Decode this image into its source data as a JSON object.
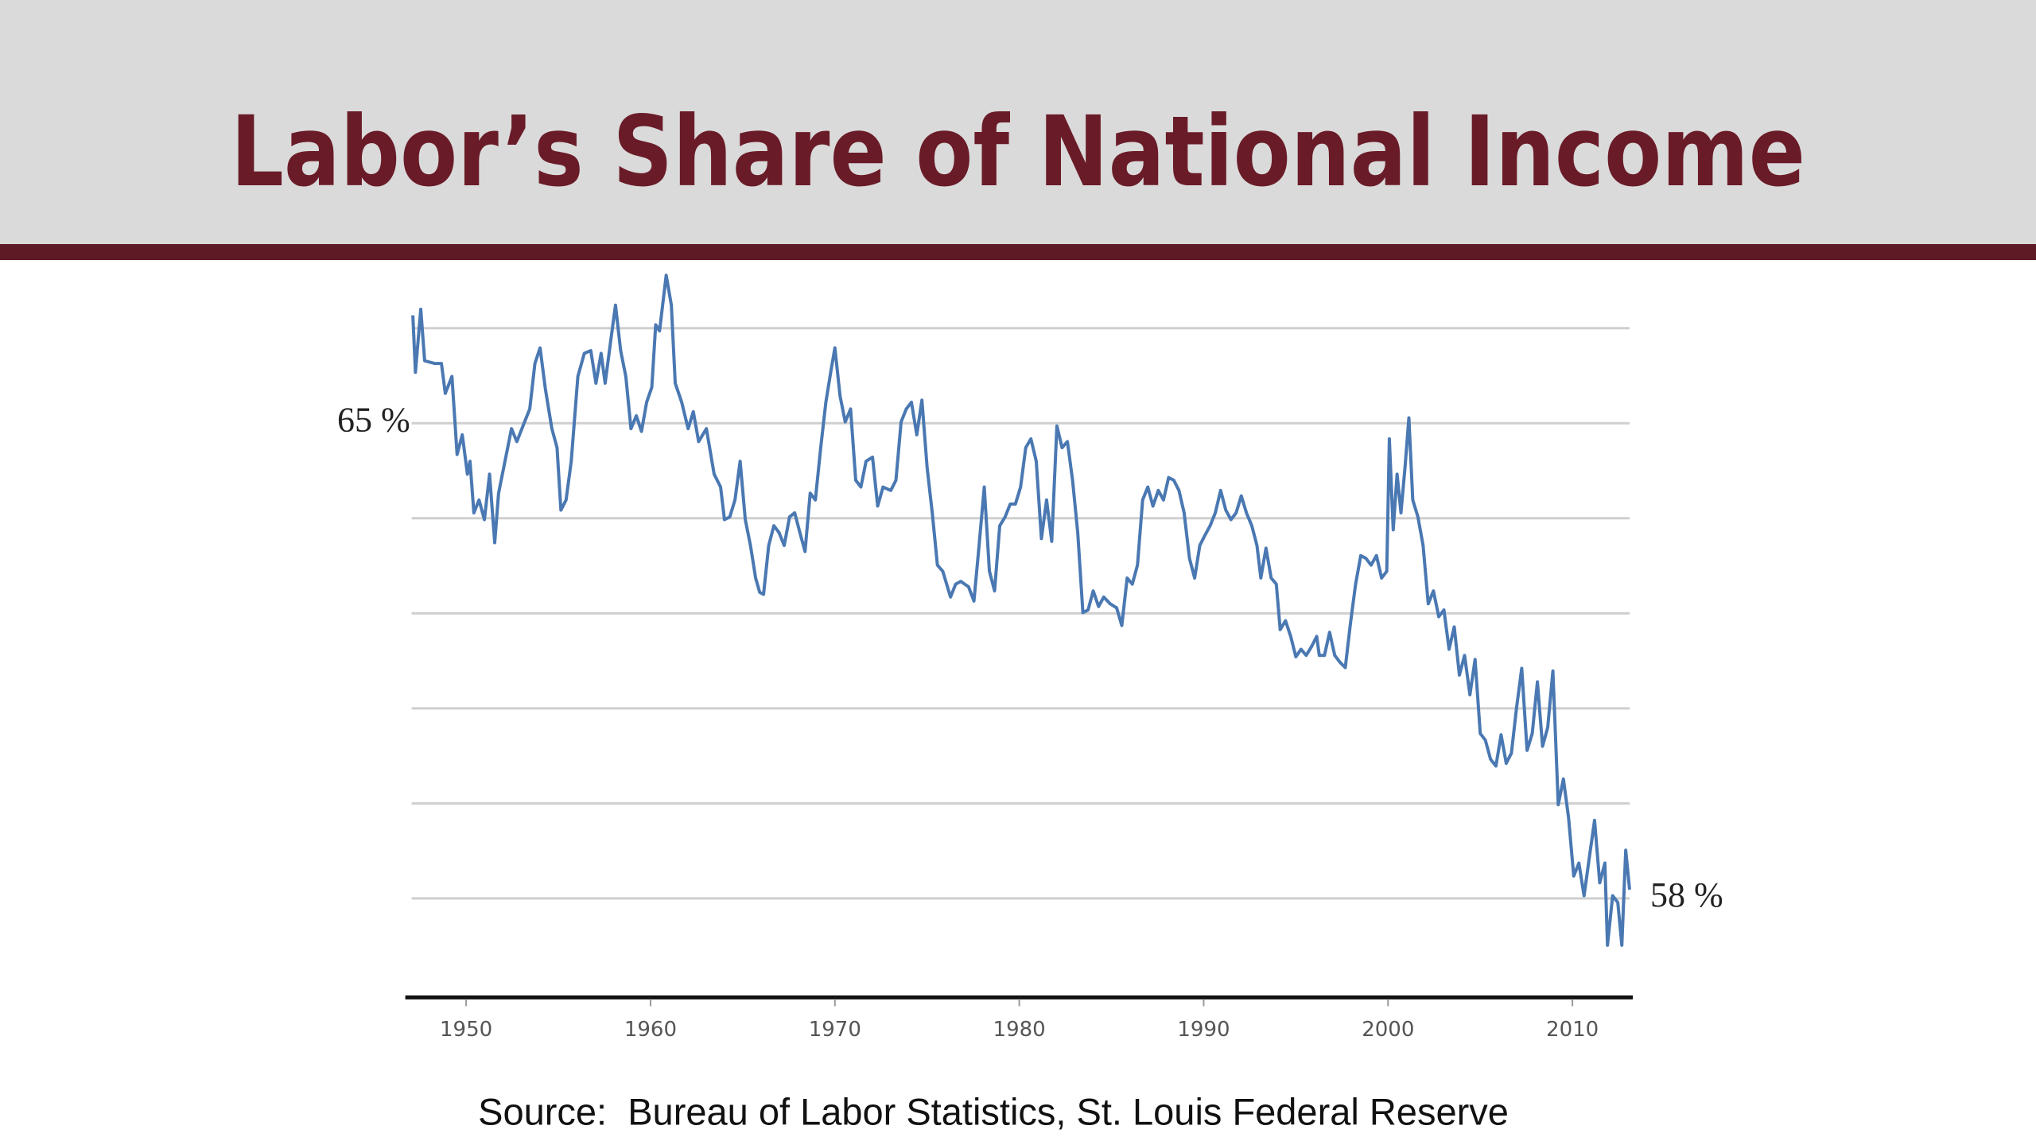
{
  "chart_data": {
    "type": "line",
    "title": "Labor’s Share of National Income",
    "source": "Source:  Bureau of Labor Statistics, St. Louis Federal Reserve",
    "color": "#4a78b2",
    "grid": true,
    "xlim": [
      1946.7,
      2013.1
    ],
    "xticks": [
      1950,
      1960,
      1970,
      1980,
      1990,
      2000,
      2010
    ],
    "ylim": [
      56.6,
      67.4
    ],
    "yticks": [
      {
        "value": 66.4,
        "label": null
      },
      {
        "value": 65,
        "label": "65 %"
      },
      {
        "value": 63.6,
        "label": null
      },
      {
        "value": 62.2,
        "label": null
      },
      {
        "value": 60.8,
        "label": null
      },
      {
        "value": 59.4,
        "label": null
      },
      {
        "value": 58,
        "label": "58 %"
      }
    ],
    "x": [
      1947.11,
      1947.25,
      1947.54,
      1947.75,
      1948.31,
      1948.66,
      1948.87,
      1949.23,
      1949.51,
      1949.79,
      1950.07,
      1950.21,
      1950.42,
      1950.7,
      1950.99,
      1951.27,
      1951.55,
      1951.76,
      1952.18,
      1952.46,
      1952.75,
      1953.17,
      1953.45,
      1953.73,
      1954.01,
      1954.3,
      1954.65,
      1954.93,
      1955.14,
      1955.42,
      1955.7,
      1956.06,
      1956.41,
      1956.76,
      1957.04,
      1957.32,
      1957.54,
      1957.82,
      1958.1,
      1958.38,
      1958.66,
      1958.94,
      1959.23,
      1959.51,
      1959.79,
      1960.07,
      1960.28,
      1960.49,
      1960.85,
      1961.13,
      1961.34,
      1961.69,
      1962.04,
      1962.32,
      1962.61,
      1963.03,
      1963.45,
      1963.8,
      1964.01,
      1964.3,
      1964.58,
      1964.86,
      1965.14,
      1965.42,
      1965.7,
      1965.92,
      1966.13,
      1966.41,
      1966.69,
      1966.97,
      1967.25,
      1967.54,
      1967.82,
      1968.1,
      1968.38,
      1968.66,
      1968.94,
      1969.23,
      1969.51,
      1969.79,
      1970.0,
      1970.28,
      1970.56,
      1970.85,
      1971.13,
      1971.41,
      1971.69,
      1972.04,
      1972.32,
      1972.61,
      1973.03,
      1973.31,
      1973.59,
      1973.87,
      1974.15,
      1974.44,
      1974.72,
      1975.0,
      1975.28,
      1975.56,
      1975.85,
      1976.27,
      1976.55,
      1976.83,
      1977.25,
      1977.54,
      1977.82,
      1978.1,
      1978.38,
      1978.66,
      1978.94,
      1979.23,
      1979.51,
      1979.79,
      1980.07,
      1980.35,
      1980.63,
      1980.92,
      1981.2,
      1981.48,
      1981.76,
      1982.04,
      1982.32,
      1982.61,
      1982.89,
      1983.17,
      1983.45,
      1983.73,
      1984.01,
      1984.3,
      1984.58,
      1984.93,
      1985.28,
      1985.56,
      1985.85,
      1986.13,
      1986.41,
      1986.69,
      1986.97,
      1987.25,
      1987.54,
      1987.82,
      1988.1,
      1988.38,
      1988.66,
      1988.94,
      1989.23,
      1989.51,
      1989.79,
      1990.07,
      1990.35,
      1990.63,
      1990.92,
      1991.2,
      1991.48,
      1991.76,
      1992.04,
      1992.32,
      1992.61,
      1992.89,
      1993.1,
      1993.38,
      1993.66,
      1993.94,
      1994.15,
      1994.44,
      1994.72,
      1995.0,
      1995.28,
      1995.56,
      1995.85,
      1996.13,
      1996.27,
      1996.55,
      1996.83,
      1997.11,
      1997.39,
      1997.68,
      1997.96,
      1998.24,
      1998.52,
      1998.8,
      1999.08,
      1999.37,
      1999.65,
      1999.93,
      2000.07,
      2000.28,
      2000.49,
      2000.7,
      2000.92,
      2001.13,
      2001.34,
      2001.62,
      2001.9,
      2002.18,
      2002.46,
      2002.75,
      2003.03,
      2003.31,
      2003.59,
      2003.87,
      2004.15,
      2004.44,
      2004.72,
      2005.0,
      2005.28,
      2005.56,
      2005.85,
      2006.13,
      2006.41,
      2006.69,
      2006.97,
      2007.25,
      2007.54,
      2007.82,
      2008.1,
      2008.38,
      2008.66,
      2008.94,
      2009.23,
      2009.51,
      2009.79,
      2010.07,
      2010.35,
      2010.63,
      2010.92,
      2011.2,
      2011.48,
      2011.76,
      2011.9,
      2012.18,
      2012.46,
      2012.68,
      2012.89,
      2013.1
    ],
    "values": [
      66.59,
      65.75,
      66.68,
      65.92,
      65.88,
      65.88,
      65.44,
      65.69,
      64.54,
      64.83,
      64.25,
      64.44,
      63.68,
      63.87,
      63.58,
      64.25,
      63.24,
      63.97,
      64.54,
      64.92,
      64.73,
      65.02,
      65.21,
      65.88,
      66.11,
      65.5,
      64.92,
      64.64,
      63.72,
      63.87,
      64.44,
      65.69,
      66.03,
      66.07,
      65.59,
      66.03,
      65.59,
      66.17,
      66.74,
      66.07,
      65.69,
      64.92,
      65.11,
      64.88,
      65.31,
      65.53,
      66.45,
      66.36,
      67.18,
      66.74,
      65.59,
      65.31,
      64.92,
      65.17,
      64.73,
      64.92,
      64.25,
      64.06,
      63.58,
      63.62,
      63.87,
      64.44,
      63.58,
      63.2,
      62.72,
      62.51,
      62.48,
      63.2,
      63.49,
      63.39,
      63.2,
      63.62,
      63.68,
      63.39,
      63.11,
      63.97,
      63.87,
      64.64,
      65.31,
      65.78,
      66.11,
      65.4,
      65.02,
      65.21,
      64.16,
      64.06,
      64.44,
      64.5,
      63.78,
      64.06,
      64.01,
      64.16,
      65.02,
      65.21,
      65.31,
      64.83,
      65.34,
      64.35,
      63.68,
      62.91,
      62.82,
      62.44,
      62.63,
      62.67,
      62.59,
      62.38,
      63.2,
      64.06,
      62.82,
      62.53,
      63.49,
      63.62,
      63.81,
      63.81,
      64.06,
      64.64,
      64.77,
      64.44,
      63.3,
      63.87,
      63.26,
      64.96,
      64.64,
      64.73,
      64.16,
      63.39,
      62.21,
      62.25,
      62.53,
      62.3,
      62.44,
      62.34,
      62.28,
      62.02,
      62.72,
      62.63,
      62.91,
      63.87,
      64.06,
      63.78,
      64.01,
      63.87,
      64.2,
      64.16,
      64.01,
      63.68,
      63.01,
      62.72,
      63.2,
      63.35,
      63.49,
      63.68,
      64.01,
      63.72,
      63.58,
      63.68,
      63.93,
      63.68,
      63.49,
      63.2,
      62.72,
      63.16,
      62.72,
      62.63,
      61.96,
      62.09,
      61.86,
      61.56,
      61.67,
      61.58,
      61.71,
      61.86,
      61.58,
      61.58,
      61.92,
      61.58,
      61.48,
      61.4,
      62.05,
      62.63,
      63.05,
      63.01,
      62.91,
      63.05,
      62.72,
      62.82,
      64.77,
      63.43,
      64.25,
      63.68,
      64.35,
      65.08,
      63.87,
      63.62,
      63.2,
      62.34,
      62.53,
      62.15,
      62.25,
      61.67,
      62.0,
      61.29,
      61.58,
      61.0,
      61.52,
      60.43,
      60.33,
      60.05,
      59.95,
      60.41,
      59.99,
      60.14,
      60.81,
      61.39,
      60.18,
      60.43,
      61.19,
      60.24,
      60.52,
      61.35,
      59.38,
      59.76,
      59.19,
      58.33,
      58.52,
      58.04,
      58.61,
      59.15,
      58.23,
      58.52,
      57.31,
      58.04,
      57.94,
      57.31,
      58.71,
      58.13
    ]
  }
}
